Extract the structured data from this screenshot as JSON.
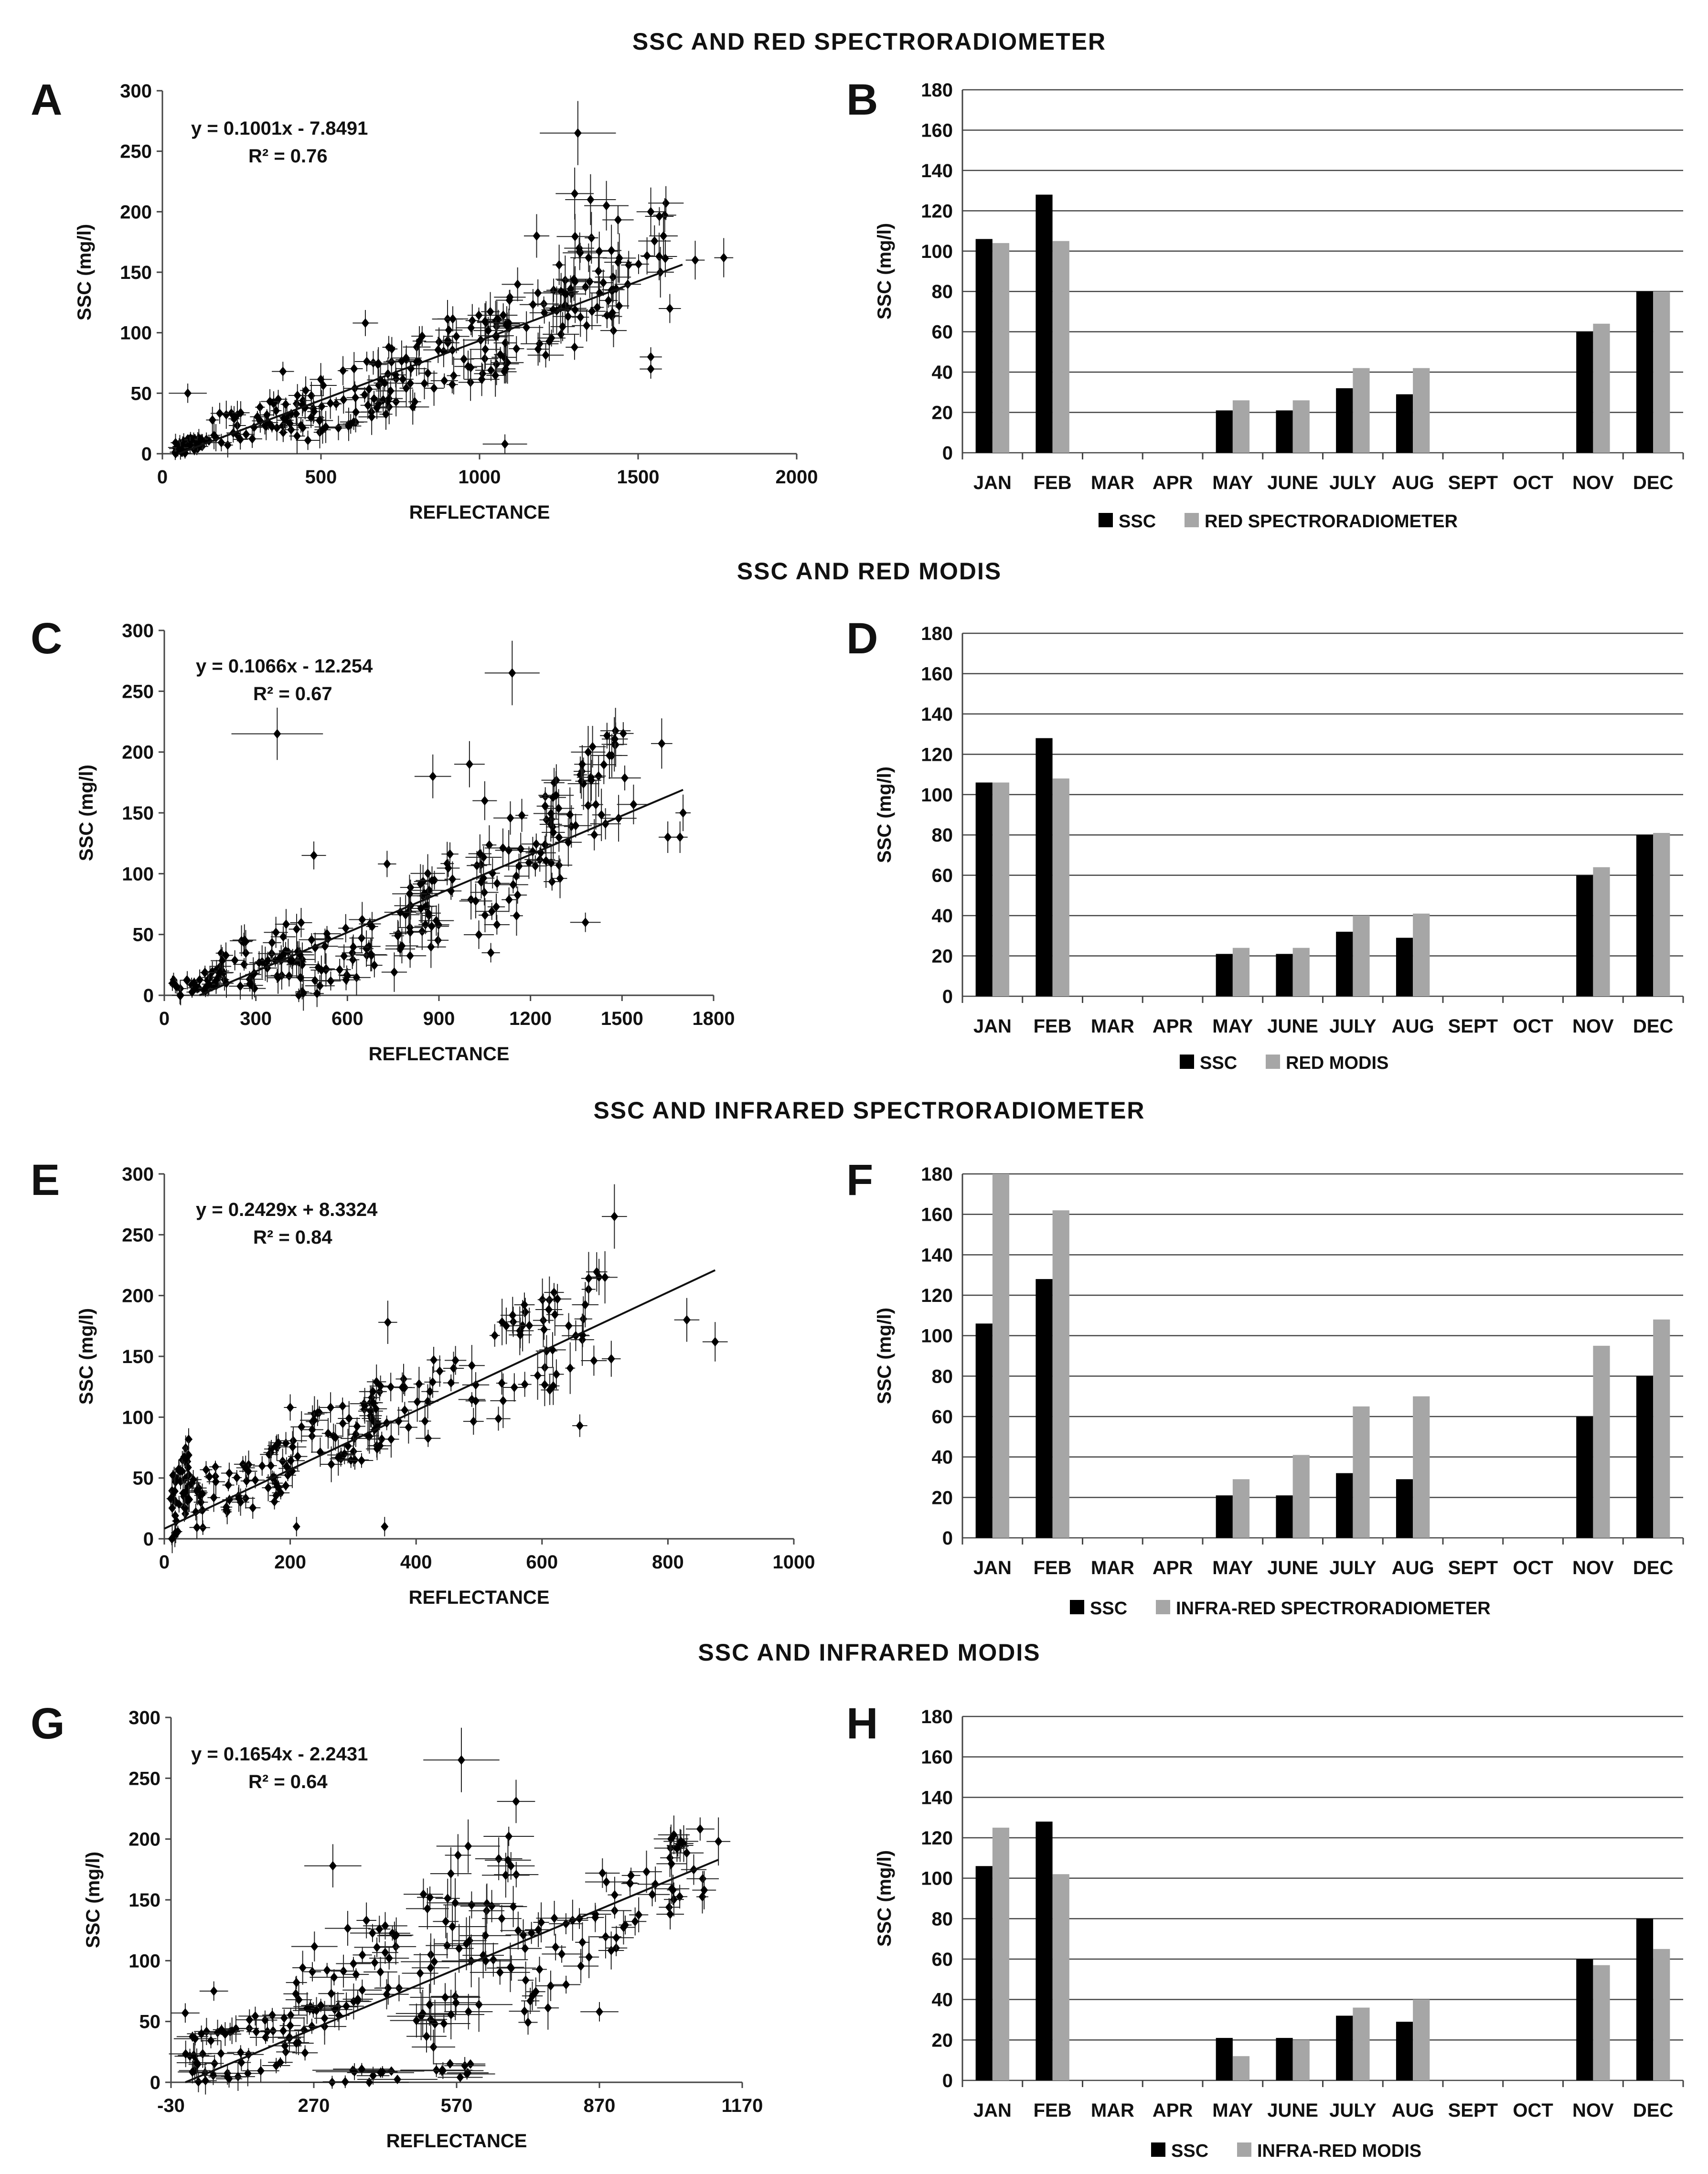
{
  "sections": [
    {
      "title": "SSC AND RED SPECTRORADIOMETER"
    },
    {
      "title": "SSC AND RED MODIS"
    },
    {
      "title": "SSC AND INFRARED SPECTRORADIOMETER"
    },
    {
      "title": "SSC AND INFRARED MODIS"
    }
  ],
  "colors": {
    "ssc_bar": "#000000",
    "second_bar": "#a6a6a6",
    "points": "#000000",
    "background": "#ffffff"
  },
  "chart_data": [
    {
      "id": "A",
      "type": "scatter",
      "title": "SSC AND RED SPECTRORADIOMETER",
      "xlabel": "REFLECTANCE",
      "ylabel": "SSC (mg/l)",
      "xlim": [
        0,
        2000
      ],
      "ylim": [
        0,
        300
      ],
      "xticks": [
        0,
        500,
        1000,
        1500,
        2000
      ],
      "yticks": [
        0,
        50,
        100,
        150,
        200,
        250,
        300
      ],
      "equation": "y = 0.1001x - 7.8491",
      "r2": "R² = 0.76",
      "trend": {
        "slope": 0.1001,
        "intercept": -7.8491,
        "x": [
          50,
          1640
        ]
      },
      "points": [
        [
          80,
          50,
          60
        ],
        [
          1310,
          265,
          120
        ],
        [
          1080,
          8,
          70
        ],
        [
          640,
          108,
          40
        ],
        [
          380,
          68,
          35
        ],
        [
          1540,
          200,
          45
        ],
        [
          1580,
          180,
          45
        ],
        [
          1350,
          210,
          80
        ],
        [
          1400,
          205,
          70
        ],
        [
          1300,
          215,
          60
        ],
        [
          1180,
          180,
          40
        ],
        [
          1120,
          140,
          50
        ],
        [
          1540,
          80,
          35
        ],
        [
          1540,
          70,
          35
        ],
        [
          1600,
          120,
          35
        ],
        [
          1770,
          162,
          30
        ],
        [
          1680,
          160,
          30
        ]
      ],
      "cluster": [
        {
          "x": [
            30,
            150
          ],
          "y": [
            0,
            15
          ],
          "n": 45,
          "sx": 18,
          "sy": 5
        },
        {
          "x": [
            150,
            450
          ],
          "y": [
            8,
            45
          ],
          "n": 45,
          "sx": 22,
          "sy": 8
        },
        {
          "x": [
            400,
            750
          ],
          "y": [
            15,
            80
          ],
          "n": 55,
          "sx": 30,
          "sy": 10
        },
        {
          "x": [
            700,
            1100
          ],
          "y": [
            40,
            120
          ],
          "n": 60,
          "sx": 35,
          "sy": 12
        },
        {
          "x": [
            1000,
            1450
          ],
          "y": [
            70,
            150
          ],
          "n": 55,
          "sx": 40,
          "sy": 12
        },
        {
          "x": [
            1200,
            1600
          ],
          "y": [
            120,
            200
          ],
          "n": 35,
          "sx": 40,
          "sy": 15
        }
      ]
    },
    {
      "id": "B",
      "type": "bar",
      "title": "SSC AND RED SPECTRORADIOMETER",
      "categories": [
        "JAN",
        "FEB",
        "MAR",
        "APR",
        "MAY",
        "JUNE",
        "JULY",
        "AUG",
        "SEPT",
        "OCT",
        "NOV",
        "DEC"
      ],
      "ylabel": "SSC (mg/l)",
      "ylim": [
        0,
        180
      ],
      "yticks": [
        0,
        20,
        40,
        60,
        80,
        100,
        120,
        140,
        160,
        180
      ],
      "series": [
        {
          "name": "SSC",
          "values": [
            106,
            128,
            0,
            0,
            21,
            21,
            32,
            29,
            0,
            0,
            60,
            80
          ]
        },
        {
          "name": "RED SPECTRORADIOMETER",
          "values": [
            104,
            105,
            0,
            0,
            26,
            26,
            42,
            42,
            0,
            0,
            64,
            80
          ]
        }
      ]
    },
    {
      "id": "C",
      "type": "scatter",
      "title": "SSC AND RED MODIS",
      "xlabel": "REFLECTANCE",
      "ylabel": "SSC (mg/l)",
      "xlim": [
        0,
        1800
      ],
      "ylim": [
        0,
        300
      ],
      "xticks": [
        0,
        300,
        600,
        900,
        1200,
        1500,
        1800
      ],
      "yticks": [
        0,
        50,
        100,
        150,
        200,
        250,
        300
      ],
      "equation": "y = 0.1066x - 12.254",
      "r2": "R² = 0.67",
      "trend": {
        "slope": 0.1066,
        "intercept": -12.254,
        "x": [
          115,
          1700
        ]
      },
      "points": [
        [
          1140,
          265,
          90
        ],
        [
          370,
          215,
          150
        ],
        [
          490,
          115,
          40
        ],
        [
          730,
          108,
          30
        ],
        [
          880,
          180,
          60
        ],
        [
          1000,
          190,
          50
        ],
        [
          1050,
          160,
          40
        ],
        [
          1070,
          35,
          30
        ],
        [
          1380,
          60,
          50
        ],
        [
          1630,
          207,
          35
        ],
        [
          1650,
          130,
          30
        ],
        [
          1700,
          150,
          25
        ],
        [
          1690,
          130,
          25
        ]
      ],
      "cluster": [
        {
          "x": [
            20,
            200
          ],
          "y": [
            0,
            20
          ],
          "n": 40,
          "sx": 20,
          "sy": 6
        },
        {
          "x": [
            150,
            450
          ],
          "y": [
            0,
            60
          ],
          "n": 45,
          "sx": 30,
          "sy": 10
        },
        {
          "x": [
            400,
            700
          ],
          "y": [
            0,
            60
          ],
          "n": 45,
          "sx": 35,
          "sy": 10
        },
        {
          "x": [
            750,
            950
          ],
          "y": [
            25,
            110
          ],
          "n": 40,
          "sx": 40,
          "sy": 12
        },
        {
          "x": [
            1000,
            1300
          ],
          "y": [
            50,
            160
          ],
          "n": 45,
          "sx": 40,
          "sy": 12
        },
        {
          "x": [
            1250,
            1550
          ],
          "y": [
            120,
            215
          ],
          "n": 40,
          "sx": 40,
          "sy": 15
        }
      ]
    },
    {
      "id": "D",
      "type": "bar",
      "title": "SSC AND RED MODIS",
      "categories": [
        "JAN",
        "FEB",
        "MAR",
        "APR",
        "MAY",
        "JUNE",
        "JULY",
        "AUG",
        "SEPT",
        "OCT",
        "NOV",
        "DEC"
      ],
      "ylabel": "SSC (mg/l)",
      "ylim": [
        0,
        180
      ],
      "yticks": [
        0,
        20,
        40,
        60,
        80,
        100,
        120,
        140,
        160,
        180
      ],
      "series": [
        {
          "name": "SSC",
          "values": [
            106,
            128,
            0,
            0,
            21,
            21,
            32,
            29,
            0,
            0,
            60,
            80
          ]
        },
        {
          "name": "RED MODIS",
          "values": [
            106,
            108,
            0,
            0,
            24,
            24,
            40,
            41,
            0,
            0,
            64,
            81
          ]
        }
      ]
    },
    {
      "id": "E",
      "type": "scatter",
      "title": "SSC AND INFRARED SPECTRORADIOMETER",
      "xlabel": "REFLECTANCE",
      "ylabel": "SSC (mg/l)",
      "xlim": [
        0,
        1000
      ],
      "ylim": [
        0,
        300
      ],
      "xticks": [
        0,
        200,
        400,
        600,
        800,
        1000
      ],
      "yticks": [
        0,
        50,
        100,
        150,
        200,
        250,
        300
      ],
      "equation": "y = 0.2429x + 8.3324",
      "r2": "R² = 0.84",
      "trend": {
        "slope": 0.2429,
        "intercept": 8.3324,
        "x": [
          0,
          875
        ]
      },
      "points": [
        [
          715,
          265,
          20
        ],
        [
          355,
          178,
          15
        ],
        [
          350,
          10,
          5
        ],
        [
          210,
          10,
          5
        ],
        [
          830,
          180,
          20
        ],
        [
          875,
          162,
          20
        ],
        [
          660,
          93,
          12
        ],
        [
          200,
          108,
          10
        ],
        [
          700,
          215,
          20
        ],
        [
          710,
          148,
          15
        ]
      ],
      "cluster": [
        {
          "x": [
            10,
            40
          ],
          "y": [
            0,
            75
          ],
          "n": 45,
          "sx": 5,
          "sy": 8
        },
        {
          "x": [
            40,
            200
          ],
          "y": [
            10,
            75
          ],
          "n": 60,
          "sx": 10,
          "sy": 8
        },
        {
          "x": [
            200,
            350
          ],
          "y": [
            50,
            120
          ],
          "n": 45,
          "sx": 15,
          "sy": 10
        },
        {
          "x": [
            300,
            500
          ],
          "y": [
            70,
            150
          ],
          "n": 40,
          "sx": 15,
          "sy": 12
        },
        {
          "x": [
            520,
            700
          ],
          "y": [
            110,
            215
          ],
          "n": 45,
          "sx": 15,
          "sy": 15
        }
      ]
    },
    {
      "id": "F",
      "type": "bar",
      "title": "SSC AND INFRARED SPECTRORADIOMETER",
      "categories": [
        "JAN",
        "FEB",
        "MAR",
        "APR",
        "MAY",
        "JUNE",
        "JULY",
        "AUG",
        "SEPT",
        "OCT",
        "NOV",
        "DEC"
      ],
      "ylabel": "SSC (mg/l)",
      "ylim": [
        0,
        180
      ],
      "yticks": [
        0,
        20,
        40,
        60,
        80,
        100,
        120,
        140,
        160,
        180
      ],
      "series": [
        {
          "name": "SSC",
          "values": [
            106,
            128,
            0,
            0,
            21,
            21,
            32,
            29,
            0,
            0,
            60,
            80
          ]
        },
        {
          "name": "INFRA-RED SPECTRORADIOMETER",
          "values": [
            180,
            162,
            0,
            0,
            29,
            41,
            65,
            70,
            0,
            0,
            95,
            108
          ]
        }
      ]
    },
    {
      "id": "G",
      "type": "scatter",
      "title": "SSC AND INFRARED MODIS",
      "xlabel": "REFLECTANCE",
      "ylabel": "SSC (mg/l)",
      "xlim": [
        -30,
        1170
      ],
      "ylim": [
        0,
        300
      ],
      "xticks": [
        -30,
        270,
        570,
        870,
        1170
      ],
      "yticks": [
        0,
        50,
        100,
        150,
        200,
        250,
        300
      ],
      "equation": "y = 0.1654x - 2.2431",
      "r2": "R² = 0.64",
      "trend": {
        "slope": 0.1654,
        "intercept": -2.2431,
        "x": [
          0,
          1120
        ]
      },
      "points": [
        [
          580,
          265,
          80
        ],
        [
          310,
          178,
          60
        ],
        [
          1120,
          198,
          25
        ],
        [
          1090,
          158,
          25
        ],
        [
          870,
          58,
          40
        ],
        [
          0,
          57,
          30
        ],
        [
          60,
          75,
          30
        ]
      ],
      "cluster": [
        {
          "x": [
            0,
            280
          ],
          "y": [
            0,
            60
          ],
          "n": 60,
          "sx": 30,
          "sy": 8
        },
        {
          "x": [
            220,
            450
          ],
          "y": [
            40,
            135
          ],
          "n": 45,
          "sx": 35,
          "sy": 10
        },
        {
          "x": [
            480,
            700
          ],
          "y": [
            30,
            215
          ],
          "n": 55,
          "sx": 50,
          "sy": 15
        },
        {
          "x": [
            700,
            900
          ],
          "y": [
            60,
            170
          ],
          "n": 30,
          "sx": 30,
          "sy": 12
        },
        {
          "x": [
            900,
            1100
          ],
          "y": [
            120,
            210
          ],
          "n": 35,
          "sx": 25,
          "sy": 12
        },
        {
          "x": [
            300,
            650
          ],
          "y": [
            0,
            15
          ],
          "n": 20,
          "sx": 60,
          "sy": 5
        }
      ]
    },
    {
      "id": "H",
      "type": "bar",
      "title": "SSC AND INFRARED MODIS",
      "categories": [
        "JAN",
        "FEB",
        "MAR",
        "APR",
        "MAY",
        "JUNE",
        "JULY",
        "AUG",
        "SEPT",
        "OCT",
        "NOV",
        "DEC"
      ],
      "ylabel": "SSC (mg/l)",
      "ylim": [
        0,
        180
      ],
      "yticks": [
        0,
        20,
        40,
        60,
        80,
        100,
        120,
        140,
        160,
        180
      ],
      "series": [
        {
          "name": "SSC",
          "values": [
            106,
            128,
            0,
            0,
            21,
            21,
            32,
            29,
            0,
            0,
            60,
            80
          ]
        },
        {
          "name": "INFRA-RED MODIS",
          "values": [
            125,
            102,
            0,
            0,
            12,
            20,
            36,
            40,
            0,
            0,
            57,
            65
          ]
        }
      ]
    }
  ]
}
